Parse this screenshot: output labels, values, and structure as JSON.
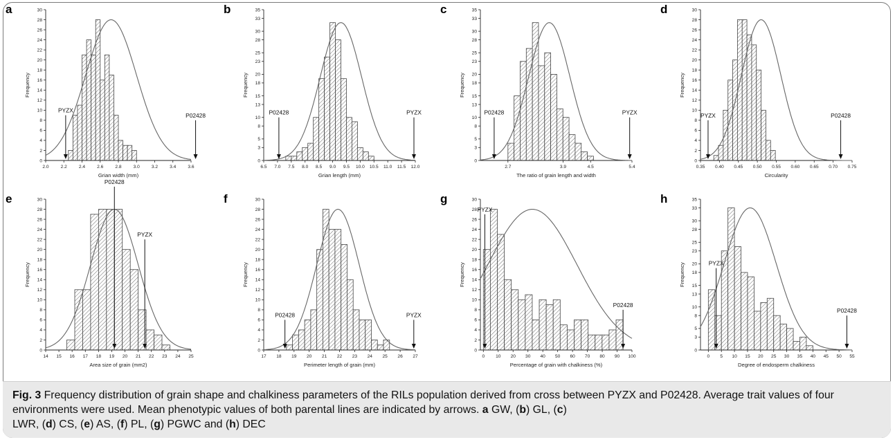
{
  "chart_data": [
    {
      "panel": "a",
      "type": "bar",
      "xlabel": "Grian width (mm)",
      "ylabel": "Frequency",
      "xlim": [
        2.0,
        3.6
      ],
      "ylim": [
        0,
        30
      ],
      "xticks": [
        2.0,
        2.2,
        2.4,
        2.6,
        2.8,
        3.0,
        3.2,
        3.4,
        3.6
      ],
      "yticks": [
        0,
        2,
        4,
        6,
        8,
        10,
        12,
        14,
        16,
        18,
        20,
        22,
        24,
        26,
        28,
        30
      ],
      "bin_start": 2.25,
      "bin_width": 0.05,
      "values": [
        2,
        9,
        11,
        21,
        24,
        21,
        28,
        16,
        21,
        17,
        9,
        4,
        3,
        3,
        2
      ],
      "curve": {
        "mean": 2.72,
        "sd": 0.28,
        "peak": 28
      },
      "arrows": [
        {
          "label": "PYZX",
          "x": 2.22,
          "y_top": 9
        },
        {
          "label": "P02428",
          "x": 3.65,
          "y_top": 8
        }
      ]
    },
    {
      "panel": "b",
      "type": "bar",
      "xlabel": "Grian length (mm)",
      "ylabel": "Frequency",
      "xlim": [
        6.5,
        12.0
      ],
      "ylim": [
        0,
        35
      ],
      "xticks": [
        6.5,
        7.0,
        7.5,
        8.0,
        8.5,
        9.0,
        9.5,
        10.0,
        10.5,
        11.0,
        11.5,
        12.0
      ],
      "yticks": [
        0,
        3,
        5,
        8,
        10,
        13,
        15,
        18,
        20,
        23,
        25,
        28,
        30,
        33,
        35
      ],
      "bin_start": 7.3,
      "bin_width": 0.2,
      "values": [
        1,
        1,
        2,
        3,
        4,
        10,
        19,
        24,
        32,
        28,
        19,
        10,
        9,
        3,
        2,
        1
      ],
      "curve": {
        "mean": 9.3,
        "sd": 0.75,
        "peak": 32
      },
      "arrows": [
        {
          "label": "P02428",
          "x": 7.05,
          "y_top": 10
        },
        {
          "label": "PYZX",
          "x": 11.95,
          "y_top": 10
        }
      ]
    },
    {
      "panel": "c",
      "type": "bar",
      "xlabel": "The ratio of grain length and width",
      "ylabel": "Frequency",
      "xlim": [
        2.1,
        5.4
      ],
      "ylim": [
        0,
        35
      ],
      "xticks": [
        2.7,
        3.9,
        4.5,
        5.4
      ],
      "yticks": [
        0,
        3,
        5,
        8,
        10,
        13,
        15,
        18,
        20,
        23,
        25,
        28,
        30,
        33,
        35
      ],
      "bin_start": 2.7,
      "bin_width": 0.133,
      "values": [
        4,
        15,
        23,
        26,
        32,
        22,
        25,
        20,
        12,
        10,
        6,
        4,
        2,
        1
      ],
      "curve": {
        "mean": 3.6,
        "sd": 0.45,
        "peak": 32
      },
      "arrows": [
        {
          "label": "P02428",
          "x": 2.4,
          "y_top": 10
        },
        {
          "label": "PYZX",
          "x": 5.35,
          "y_top": 10
        }
      ]
    },
    {
      "panel": "d",
      "type": "bar",
      "xlabel": "Circularity",
      "ylabel": "Frequency",
      "xlim": [
        0.35,
        0.75
      ],
      "ylim": [
        0,
        30
      ],
      "xticks": [
        0.35,
        0.4,
        0.45,
        0.5,
        0.55,
        0.6,
        0.65,
        0.7,
        0.75
      ],
      "yticks": [
        0,
        2,
        4,
        6,
        8,
        10,
        12,
        14,
        16,
        18,
        20,
        22,
        24,
        26,
        28,
        30
      ],
      "bin_start": 0.385,
      "bin_width": 0.0125,
      "values": [
        1,
        3,
        10,
        16,
        20,
        28,
        28,
        25,
        23,
        18,
        10,
        4,
        2
      ],
      "curve": {
        "mean": 0.51,
        "sd": 0.052,
        "peak": 28
      },
      "arrows": [
        {
          "label": "PYZX",
          "x": 0.37,
          "y_top": 8
        },
        {
          "label": "P02428",
          "x": 0.72,
          "y_top": 8
        }
      ]
    },
    {
      "panel": "e",
      "type": "bar",
      "xlabel": "Area size of grain (mm2)",
      "ylabel": "Frequency",
      "xlim": [
        14,
        25
      ],
      "ylim": [
        0,
        30
      ],
      "xticks": [
        14,
        15,
        16,
        17,
        18,
        19,
        20,
        21,
        22,
        23,
        24,
        25
      ],
      "yticks": [
        0,
        2,
        4,
        6,
        8,
        10,
        12,
        14,
        16,
        18,
        20,
        22,
        24,
        26,
        28,
        30
      ],
      "bin_start": 15.6,
      "bin_width": 0.6,
      "values": [
        2,
        12,
        12,
        27,
        28,
        28,
        28,
        20,
        16,
        8,
        4,
        3,
        1
      ],
      "curve": {
        "mean": 19.2,
        "sd": 1.8,
        "peak": 28
      },
      "arrows": [
        {
          "label": "P02428",
          "x": 19.2,
          "y_top": 32.5
        },
        {
          "label": "PYZX",
          "x": 21.5,
          "y_top": 22
        }
      ]
    },
    {
      "panel": "f",
      "type": "bar",
      "xlabel": "Perimeter length of grain (mm)",
      "ylabel": "Frequency",
      "xlim": [
        17,
        27
      ],
      "ylim": [
        0,
        30
      ],
      "xticks": [
        17,
        18,
        19,
        20,
        21,
        22,
        23,
        24,
        25,
        26,
        27
      ],
      "yticks": [
        0,
        2,
        4,
        6,
        8,
        10,
        12,
        14,
        16,
        18,
        20,
        22,
        24,
        26,
        28,
        30
      ],
      "bin_start": 18.5,
      "bin_width": 0.4,
      "values": [
        1,
        3,
        4,
        6,
        8,
        20,
        28,
        24,
        24,
        21,
        14,
        8,
        6,
        6,
        2,
        1,
        2
      ],
      "curve": {
        "mean": 21.9,
        "sd": 1.4,
        "peak": 28
      },
      "arrows": [
        {
          "label": "P02428",
          "x": 18.4,
          "y_top": 6
        },
        {
          "label": "PYZX",
          "x": 26.9,
          "y_top": 6
        }
      ]
    },
    {
      "panel": "g",
      "type": "bar",
      "xlabel": "Percentage of grain with chalkiness (%)",
      "ylabel": "Frequency",
      "xlim": [
        -2,
        100
      ],
      "ylim": [
        0,
        30
      ],
      "xticks": [
        0,
        10,
        20,
        30,
        40,
        50,
        60,
        70,
        80,
        90,
        100
      ],
      "yticks": [
        0,
        2,
        4,
        6,
        8,
        10,
        12,
        14,
        16,
        18,
        20,
        22,
        24,
        26,
        28,
        30
      ],
      "bin_start": 0,
      "bin_width": 4.7,
      "values": [
        20,
        28,
        23,
        14,
        12,
        10,
        11,
        6,
        10,
        9,
        10,
        5,
        4,
        6,
        6,
        3,
        3,
        3,
        4,
        6
      ],
      "curve": {
        "mean": 33,
        "sd": 30,
        "peak": 28
      },
      "arrows": [
        {
          "label": "PYZX",
          "x": 1,
          "y_top": 27
        },
        {
          "label": "P02428",
          "x": 94,
          "y_top": 8
        }
      ]
    },
    {
      "panel": "h",
      "type": "bar",
      "xlabel": "Degree of endosperm chalkiness",
      "ylabel": "Frequency",
      "xlim": [
        -3,
        55
      ],
      "ylim": [
        0,
        35
      ],
      "xticks": [
        0,
        5,
        10,
        15,
        20,
        25,
        30,
        35,
        40,
        45,
        50,
        55
      ],
      "yticks": [
        0,
        3,
        5,
        8,
        10,
        13,
        15,
        18,
        20,
        23,
        25,
        28,
        30,
        33,
        35
      ],
      "bin_start": 0,
      "bin_width": 2.5,
      "values": [
        14,
        8,
        23,
        33,
        24,
        18,
        17,
        9,
        11,
        12,
        8,
        6,
        5,
        2,
        3,
        1
      ],
      "curve": {
        "mean": 16,
        "sd": 10,
        "peak": 33
      },
      "arrows": [
        {
          "label": "PYZX",
          "x": 3,
          "y_top": 19
        },
        {
          "label": "P02428",
          "x": 53,
          "y_top": 8
        }
      ]
    }
  ],
  "caption": {
    "fig_label": "Fig. 3",
    "text_1": " Frequency distribution of grain shape and chalkiness parameters of the RILs population derived from cross between PYZX and P02428. Average trait values of four environments were used. Mean phenotypic values of both parental lines are indicated by arrows. ",
    "a": "a",
    "t_a": " GW, (",
    "b": "b",
    "t_b": ") GL, (",
    "c": "c",
    "t_c": ")",
    "t_line3": "LWR, (",
    "d": "d",
    "t_d": ") CS, (",
    "e": "e",
    "t_e": ") AS, (",
    "f": "f",
    "t_f": ") PL, (",
    "g": "g",
    "t_g": ") PGWC and (",
    "h": "h",
    "t_h": ") DEC"
  }
}
